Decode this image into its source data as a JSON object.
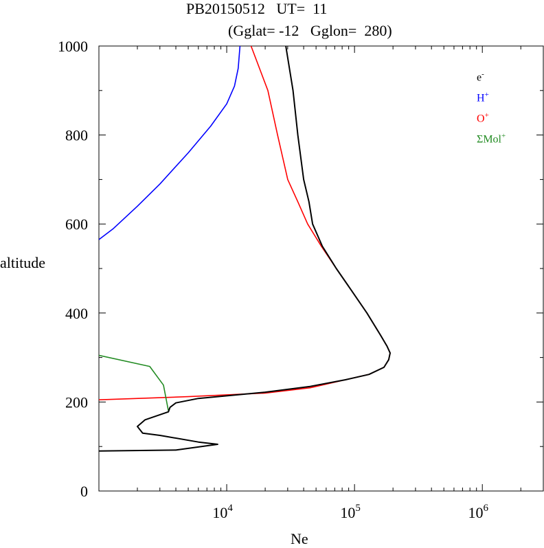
{
  "chart_data": {
    "type": "line",
    "title_line1": "PB20150512   UT=  11",
    "title_line2": "(Gglat= -12   Gglon=  280)",
    "xlabel": "Ne",
    "ylabel": "altitude",
    "xscale": "log",
    "xlim": [
      1000,
      3000000
    ],
    "ylim": [
      0,
      1000
    ],
    "y_ticks": [
      0,
      200,
      400,
      600,
      800,
      1000
    ],
    "y_tick_labels": [
      "0",
      "200",
      "400",
      "600",
      "800",
      "1000"
    ],
    "x_ticks": [
      10000,
      100000,
      1000000
    ],
    "x_tick_labels": [
      {
        "base": "10",
        "exp": "4"
      },
      {
        "base": "10",
        "exp": "5"
      },
      {
        "base": "10",
        "exp": "6"
      }
    ],
    "legend_position": "top-right",
    "series": [
      {
        "name": "H+",
        "label": "H",
        "sup": "+",
        "color": "#0000ff",
        "points": [
          [
            1000,
            565
          ],
          [
            1300,
            590
          ],
          [
            2000,
            640
          ],
          [
            3000,
            690
          ],
          [
            5000,
            760
          ],
          [
            7500,
            820
          ],
          [
            10000,
            870
          ],
          [
            11500,
            910
          ],
          [
            12300,
            950
          ],
          [
            12700,
            1000
          ]
        ]
      },
      {
        "name": "O+",
        "label": "O",
        "sup": "+",
        "color": "#ff0000",
        "points": [
          [
            1000,
            205
          ],
          [
            5000,
            212
          ],
          [
            20000,
            220
          ],
          [
            45000,
            232
          ],
          [
            85000,
            250
          ],
          [
            130000,
            262
          ],
          [
            170000,
            278
          ],
          [
            185000,
            295
          ],
          [
            190000,
            310
          ],
          [
            180000,
            325
          ],
          [
            160000,
            350
          ],
          [
            125000,
            400
          ],
          [
            95000,
            450
          ],
          [
            72000,
            500
          ],
          [
            55000,
            550
          ],
          [
            43000,
            600
          ],
          [
            36000,
            650
          ],
          [
            30000,
            700
          ],
          [
            25000,
            800
          ],
          [
            21000,
            900
          ],
          [
            15500,
            1000
          ]
        ]
      },
      {
        "name": "ΣMol+",
        "label": "ΣMol",
        "sup": "+",
        "color": "#228b22",
        "points": [
          [
            1000,
            305
          ],
          [
            2500,
            280
          ],
          [
            3200,
            238
          ],
          [
            3500,
            180
          ]
        ]
      },
      {
        "name": "e-",
        "label": "e",
        "sup": "-",
        "color": "#000000",
        "points": [
          [
            1000,
            90
          ],
          [
            4000,
            92
          ],
          [
            8500,
            105
          ],
          [
            6000,
            110
          ],
          [
            3000,
            125
          ],
          [
            2200,
            130
          ],
          [
            2000,
            145
          ],
          [
            2300,
            160
          ],
          [
            3500,
            178
          ],
          [
            3600,
            188
          ],
          [
            4000,
            198
          ],
          [
            6000,
            208
          ],
          [
            20000,
            222
          ],
          [
            45000,
            235
          ],
          [
            85000,
            250
          ],
          [
            130000,
            262
          ],
          [
            170000,
            278
          ],
          [
            185000,
            295
          ],
          [
            190000,
            310
          ],
          [
            180000,
            325
          ],
          [
            160000,
            350
          ],
          [
            125000,
            400
          ],
          [
            95000,
            450
          ],
          [
            72000,
            500
          ],
          [
            56000,
            550
          ],
          [
            47000,
            600
          ],
          [
            44000,
            650
          ],
          [
            40000,
            700
          ],
          [
            36000,
            800
          ],
          [
            33000,
            900
          ],
          [
            29000,
            1000
          ]
        ]
      }
    ]
  }
}
